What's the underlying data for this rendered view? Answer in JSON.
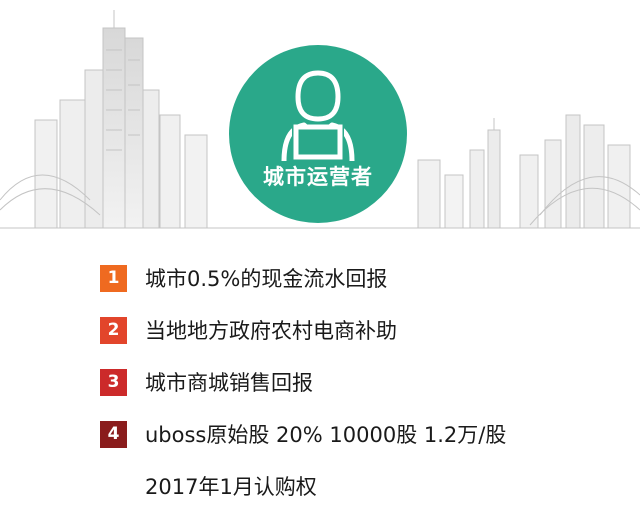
{
  "badge": {
    "label": "城市运营者",
    "icon": "person-laptop-icon",
    "color": "#2aa88a"
  },
  "items": [
    {
      "number": "1",
      "text": "城市0.5%的现金流水回报",
      "color": "#ef6a20"
    },
    {
      "number": "2",
      "text": "当地地方政府农村电商补助",
      "color": "#e2452b"
    },
    {
      "number": "3",
      "text": "城市商城销售回报",
      "color": "#cc2a2a"
    },
    {
      "number": "4",
      "text": "uboss原始股 20% 10000股 1.2万/股",
      "color": "#8a1c1c"
    }
  ],
  "continuation": "2017年1月认购权"
}
